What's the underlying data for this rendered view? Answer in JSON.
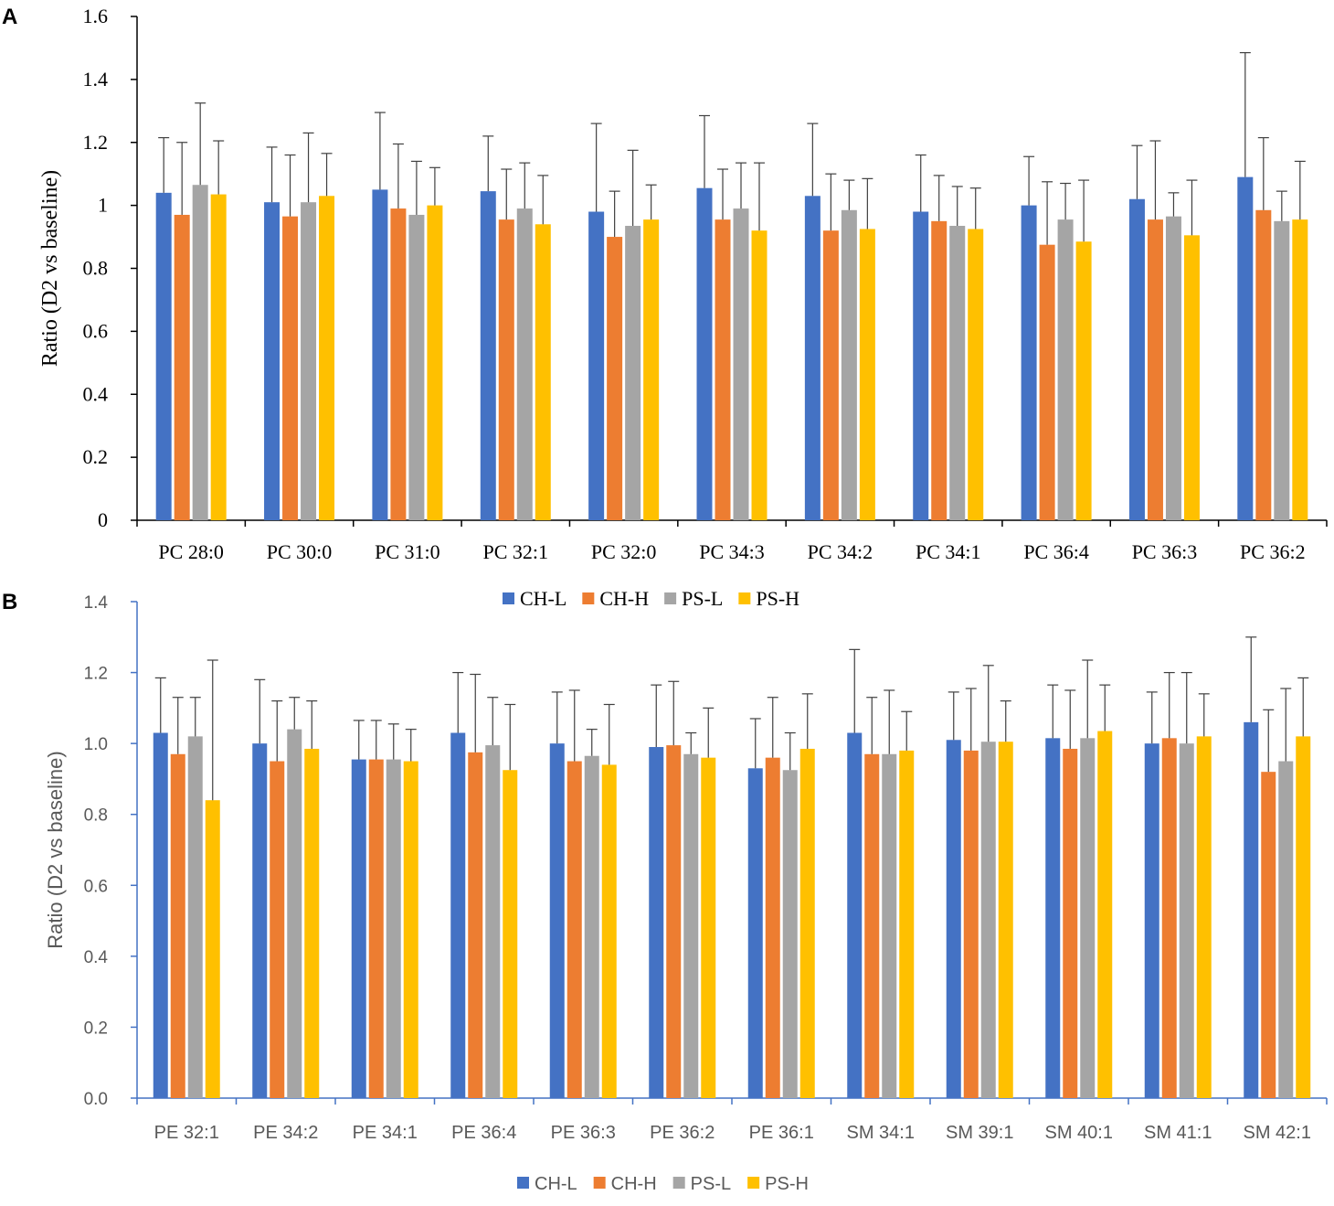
{
  "colors": {
    "CH-L": "#4472C4",
    "CH-H": "#ED7D31",
    "PS-L": "#A5A5A5",
    "PS-H": "#FFC000"
  },
  "chart_data": [
    {
      "panel": "A",
      "type": "bar",
      "ylabel": "Ratio (D2 vs baseline)",
      "xlabel": "",
      "ylim": [
        0,
        1.6
      ],
      "yticks": [
        "0",
        "0.2",
        "0.4",
        "0.6",
        "0.8",
        "1",
        "1.2",
        "1.4",
        "1.6"
      ],
      "legend_position": "bottom",
      "error_bars": true,
      "categories": [
        "PC 28:0",
        "PC 30:0",
        "PC 31:0",
        "PC 32:1",
        "PC 32:0",
        "PC 34:3",
        "PC 34:2",
        "PC 34:1",
        "PC 36:4",
        "PC 36:3",
        "PC 36:2"
      ],
      "series": [
        {
          "name": "CH-L",
          "values": [
            1.04,
            1.01,
            1.05,
            1.045,
            0.98,
            1.055,
            1.03,
            0.98,
            1.0,
            1.02,
            1.09
          ],
          "errors": [
            0.175,
            0.175,
            0.245,
            0.175,
            0.28,
            0.23,
            0.23,
            0.18,
            0.155,
            0.17,
            0.395
          ]
        },
        {
          "name": "CH-H",
          "values": [
            0.97,
            0.965,
            0.99,
            0.955,
            0.9,
            0.955,
            0.92,
            0.95,
            0.875,
            0.955,
            0.985
          ],
          "errors": [
            0.23,
            0.195,
            0.205,
            0.16,
            0.145,
            0.16,
            0.18,
            0.145,
            0.2,
            0.25,
            0.23
          ]
        },
        {
          "name": "PS-L",
          "values": [
            1.065,
            1.01,
            0.97,
            0.99,
            0.935,
            0.99,
            0.985,
            0.935,
            0.955,
            0.965,
            0.95
          ],
          "errors": [
            0.26,
            0.22,
            0.17,
            0.145,
            0.24,
            0.145,
            0.095,
            0.125,
            0.115,
            0.075,
            0.095
          ]
        },
        {
          "name": "PS-H",
          "values": [
            1.035,
            1.03,
            1.0,
            0.94,
            0.955,
            0.92,
            0.925,
            0.925,
            0.885,
            0.905,
            0.955
          ],
          "errors": [
            0.17,
            0.135,
            0.12,
            0.155,
            0.11,
            0.215,
            0.16,
            0.13,
            0.195,
            0.175,
            0.185
          ]
        }
      ]
    },
    {
      "panel": "B",
      "type": "bar",
      "ylabel": "Ratio (D2 vs baseline)",
      "xlabel": "",
      "ylim": [
        0,
        1.4
      ],
      "yticks": [
        "0.0",
        "0.2",
        "0.4",
        "0.6",
        "0.8",
        "1.0",
        "1.2",
        "1.4"
      ],
      "legend_position": "bottom",
      "error_bars": true,
      "categories": [
        "PE 32:1",
        "PE 34:2",
        "PE 34:1",
        "PE 36:4",
        "PE 36:3",
        "PE 36:2",
        "PE 36:1",
        "SM 34:1",
        "SM 39:1",
        "SM 40:1",
        "SM 41:1",
        "SM 42:1"
      ],
      "series": [
        {
          "name": "CH-L",
          "values": [
            1.03,
            1.0,
            0.955,
            1.03,
            1.0,
            0.99,
            0.93,
            1.03,
            1.01,
            1.015,
            1.0,
            1.06
          ],
          "errors": [
            0.155,
            0.18,
            0.11,
            0.17,
            0.145,
            0.175,
            0.14,
            0.235,
            0.135,
            0.15,
            0.145,
            0.24
          ]
        },
        {
          "name": "CH-H",
          "values": [
            0.97,
            0.95,
            0.955,
            0.975,
            0.95,
            0.995,
            0.96,
            0.97,
            0.98,
            0.985,
            1.015,
            0.92
          ],
          "errors": [
            0.16,
            0.17,
            0.11,
            0.22,
            0.2,
            0.18,
            0.17,
            0.16,
            0.175,
            0.165,
            0.185,
            0.175
          ]
        },
        {
          "name": "PS-L",
          "values": [
            1.02,
            1.04,
            0.955,
            0.995,
            0.965,
            0.97,
            0.925,
            0.97,
            1.005,
            1.015,
            1.0,
            0.95
          ],
          "errors": [
            0.11,
            0.09,
            0.1,
            0.135,
            0.075,
            0.06,
            0.105,
            0.18,
            0.215,
            0.22,
            0.2,
            0.205
          ]
        },
        {
          "name": "PS-H",
          "values": [
            0.84,
            0.985,
            0.95,
            0.925,
            0.94,
            0.96,
            0.985,
            0.98,
            1.005,
            1.035,
            1.02,
            1.02
          ],
          "errors": [
            0.395,
            0.135,
            0.09,
            0.185,
            0.17,
            0.14,
            0.155,
            0.11,
            0.115,
            0.13,
            0.12,
            0.165
          ]
        }
      ]
    }
  ]
}
